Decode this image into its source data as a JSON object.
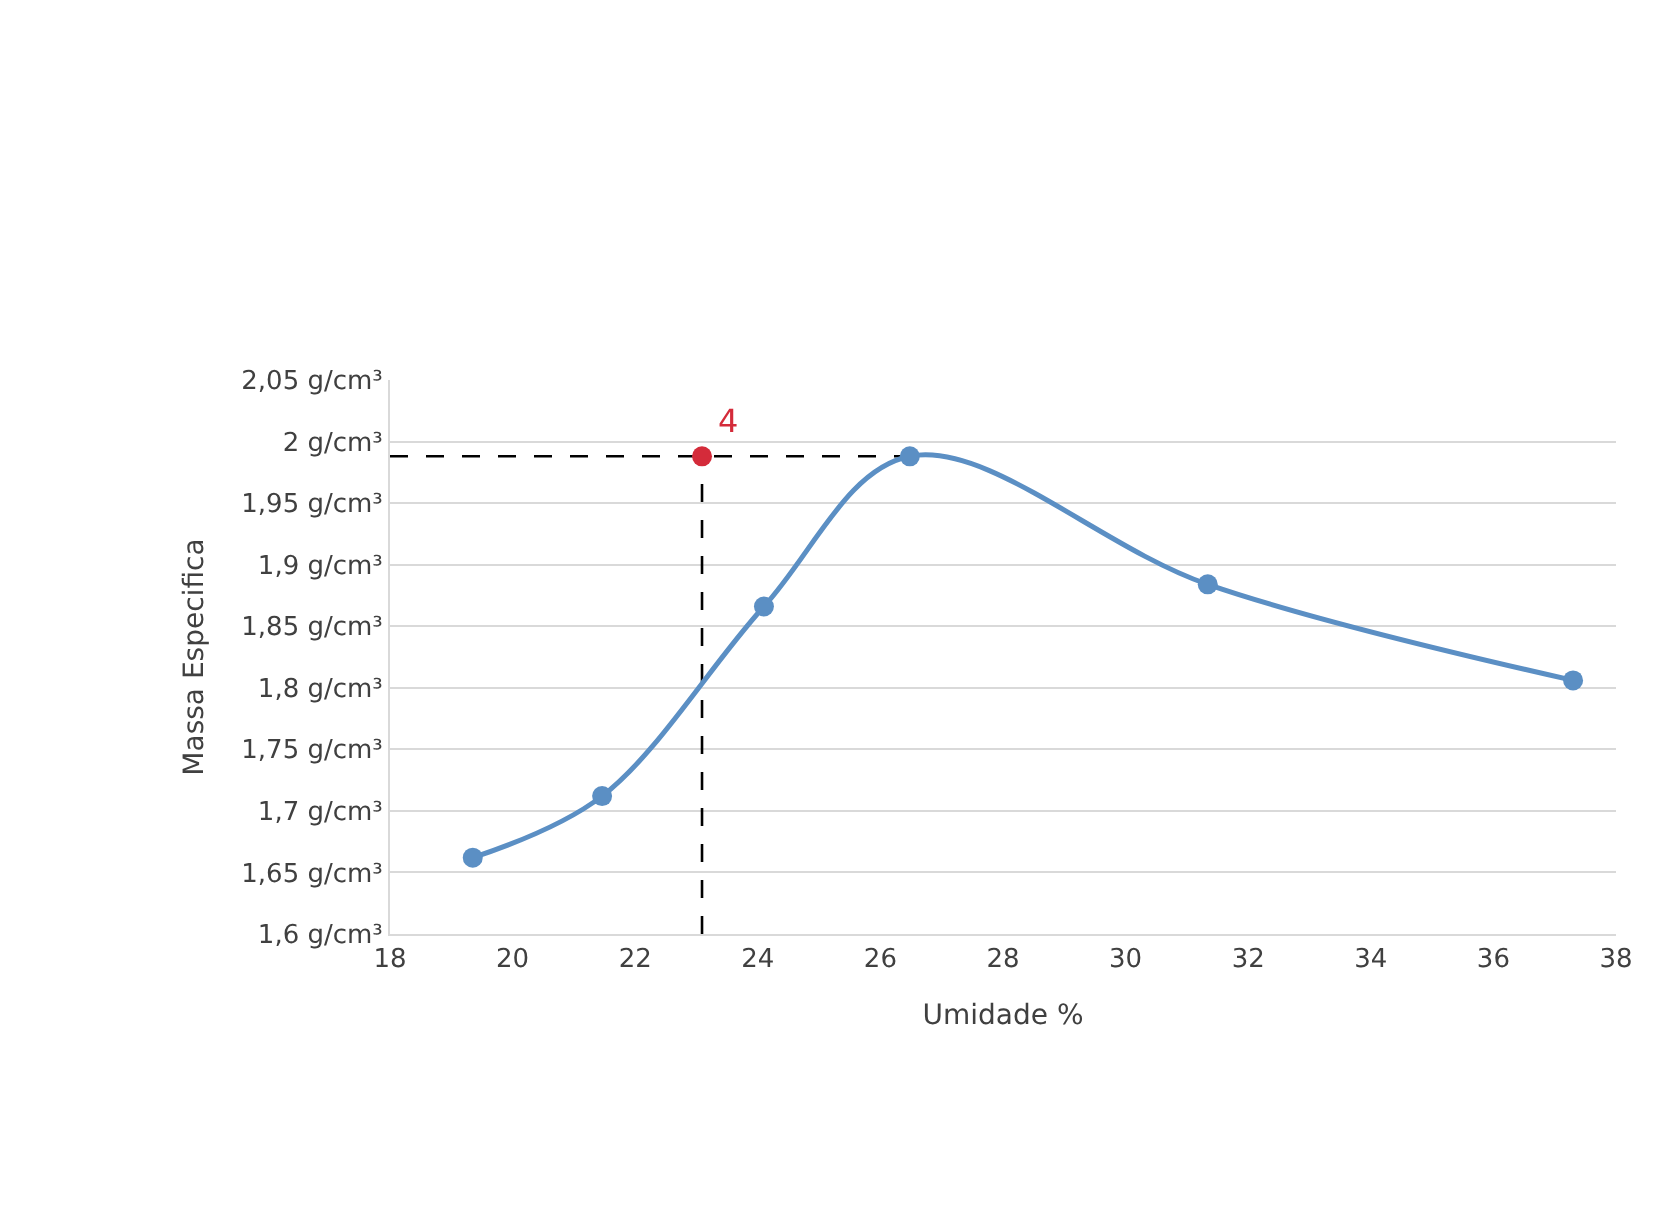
{
  "chart_data": {
    "type": "line",
    "xlabel": "Umidade %",
    "ylabel": "Massa Especifica",
    "series": [
      {
        "type": "line",
        "color": "#000000",
        "line_style": "dashed",
        "marker": "none",
        "x": [
          18,
          26.48
        ],
        "values": [
          1.988,
          1.988
        ]
      },
      {
        "type": "line",
        "color": "#000000",
        "line_style": "dashed",
        "marker": "none",
        "x": [
          23.09,
          23.09
        ],
        "values": [
          1.6,
          1.988
        ]
      },
      {
        "color": "#5b8fc4",
        "line_style": "solid",
        "marker": "circle",
        "x": [
          19.35,
          21.46,
          24.1,
          26.48,
          31.34,
          37.3
        ],
        "values": [
          1.662,
          1.712,
          1.866,
          1.988,
          1.884,
          1.806
        ]
      },
      {
        "type": "scatter",
        "color": "#d42b3a",
        "marker": "circle",
        "x": [
          23.09
        ],
        "values": [
          1.988
        ]
      }
    ],
    "annotations": [
      {
        "text": "4",
        "x": 23.09,
        "y": 1.988
      }
    ],
    "xlim": [
      18,
      38
    ],
    "xticks": [
      18,
      20,
      22,
      24,
      26,
      28,
      30,
      32,
      34,
      36,
      38
    ],
    "ylim": [
      1.6,
      2.05
    ],
    "yticks": [
      {
        "value": 1.6,
        "label": "1,6 g/cm³"
      },
      {
        "value": 1.65,
        "label": "1,65 g/cm³"
      },
      {
        "value": 1.7,
        "label": "1,7 g/cm³"
      },
      {
        "value": 1.75,
        "label": "1,75 g/cm³"
      },
      {
        "value": 1.8,
        "label": "1,8 g/cm³"
      },
      {
        "value": 1.85,
        "label": "1,85 g/cm³"
      },
      {
        "value": 1.9,
        "label": "1,9 g/cm³"
      },
      {
        "value": 1.95,
        "label": "1,95 g/cm³"
      },
      {
        "value": 2,
        "label": "2 g/cm³"
      },
      {
        "value": 2.05,
        "label": "2,05 g/cm³"
      }
    ],
    "grid": "y"
  }
}
